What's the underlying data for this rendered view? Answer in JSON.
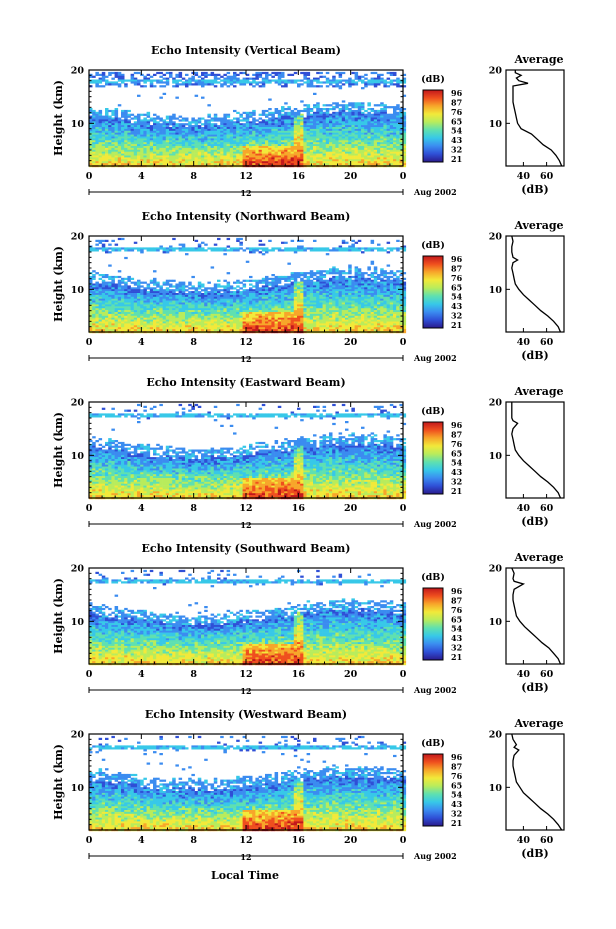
{
  "chart_data": [
    {
      "type": "heatmap",
      "title": "Echo Intensity (Vertical Beam)",
      "ylabel": "Height (km)",
      "xticks": [
        "0",
        "4",
        "8",
        "12",
        "16",
        "20",
        "0"
      ],
      "xlim": [
        0,
        24
      ],
      "yticks": [
        "20",
        "10"
      ],
      "ylim": [
        2,
        20
      ],
      "date_label": "Aug 2002",
      "date_tick": "12",
      "colorbar": {
        "label": "(dB)",
        "ticks": [
          "96",
          "87",
          "76",
          "65",
          "54",
          "43",
          "32",
          "21"
        ]
      },
      "average": {
        "title": "Average",
        "xlabel": "(dB)",
        "xticks": [
          "40",
          "60"
        ],
        "xlim": [
          25,
          75
        ],
        "yticks": [
          "20",
          "10"
        ],
        "profile": [
          [
            2,
            73
          ],
          [
            3,
            71
          ],
          [
            4,
            68
          ],
          [
            5,
            64
          ],
          [
            6,
            57
          ],
          [
            7,
            52
          ],
          [
            8,
            47
          ],
          [
            9,
            38
          ],
          [
            10,
            35
          ],
          [
            11,
            34
          ],
          [
            12,
            33
          ],
          [
            13,
            32
          ],
          [
            14,
            31
          ],
          [
            15,
            31
          ],
          [
            16,
            31
          ],
          [
            17,
            31
          ],
          [
            17.5,
            44
          ],
          [
            18,
            36
          ],
          [
            18.5,
            34
          ],
          [
            19,
            38
          ],
          [
            19.5,
            33
          ],
          [
            20,
            33
          ]
        ]
      }
    },
    {
      "type": "heatmap",
      "title": "Echo Intensity (Northward Beam)",
      "ylabel": "Height (km)",
      "xticks": [
        "0",
        "4",
        "8",
        "12",
        "16",
        "20",
        "0"
      ],
      "xlim": [
        0,
        24
      ],
      "yticks": [
        "20",
        "10"
      ],
      "ylim": [
        2,
        20
      ],
      "date_label": "Aug 2002",
      "date_tick": "12",
      "colorbar": {
        "label": "(dB)",
        "ticks": [
          "96",
          "87",
          "76",
          "65",
          "54",
          "43",
          "32",
          "21"
        ]
      },
      "average": {
        "title": "Average",
        "xlabel": "(dB)",
        "xticks": [
          "40",
          "60"
        ],
        "xlim": [
          25,
          75
        ],
        "yticks": [
          "20",
          "10"
        ],
        "profile": [
          [
            2,
            72
          ],
          [
            3,
            70
          ],
          [
            4,
            66
          ],
          [
            5,
            61
          ],
          [
            6,
            55
          ],
          [
            7,
            50
          ],
          [
            8,
            45
          ],
          [
            9,
            40
          ],
          [
            10,
            36
          ],
          [
            11,
            33
          ],
          [
            12,
            32
          ],
          [
            13,
            31
          ],
          [
            14,
            30
          ],
          [
            15,
            31
          ],
          [
            15.5,
            35
          ],
          [
            16,
            31
          ],
          [
            17,
            30
          ],
          [
            18,
            30
          ],
          [
            19,
            31
          ],
          [
            20,
            30
          ]
        ]
      }
    },
    {
      "type": "heatmap",
      "title": "Echo Intensity (Eastward Beam)",
      "ylabel": "Height (km)",
      "xticks": [
        "0",
        "4",
        "8",
        "12",
        "16",
        "20",
        "0"
      ],
      "xlim": [
        0,
        24
      ],
      "yticks": [
        "20",
        "10"
      ],
      "ylim": [
        2,
        20
      ],
      "date_label": "Aug 2002",
      "date_tick": "12",
      "colorbar": {
        "label": "(dB)",
        "ticks": [
          "96",
          "87",
          "76",
          "65",
          "54",
          "43",
          "32",
          "21"
        ]
      },
      "average": {
        "title": "Average",
        "xlabel": "(dB)",
        "xticks": [
          "40",
          "60"
        ],
        "xlim": [
          25,
          75
        ],
        "yticks": [
          "20",
          "10"
        ],
        "profile": [
          [
            2,
            72
          ],
          [
            3,
            70
          ],
          [
            4,
            66
          ],
          [
            5,
            61
          ],
          [
            6,
            55
          ],
          [
            7,
            50
          ],
          [
            8,
            45
          ],
          [
            9,
            40
          ],
          [
            10,
            36
          ],
          [
            11,
            33
          ],
          [
            12,
            32
          ],
          [
            13,
            31
          ],
          [
            14,
            30
          ],
          [
            15,
            31
          ],
          [
            16,
            35
          ],
          [
            16.5,
            31
          ],
          [
            17,
            30
          ],
          [
            18,
            30
          ],
          [
            19,
            30
          ],
          [
            20,
            30
          ]
        ]
      }
    },
    {
      "type": "heatmap",
      "title": "Echo Intensity (Southward Beam)",
      "ylabel": "Height (km)",
      "xticks": [
        "0",
        "4",
        "8",
        "12",
        "16",
        "20",
        "0"
      ],
      "xlim": [
        0,
        24
      ],
      "yticks": [
        "20",
        "10"
      ],
      "ylim": [
        2,
        20
      ],
      "date_label": "Aug 2002",
      "date_tick": "12",
      "colorbar": {
        "label": "(dB)",
        "ticks": [
          "96",
          "87",
          "76",
          "65",
          "54",
          "43",
          "32",
          "21"
        ]
      },
      "average": {
        "title": "Average",
        "xlabel": "(dB)",
        "xticks": [
          "40",
          "60"
        ],
        "xlim": [
          25,
          75
        ],
        "yticks": [
          "20",
          "10"
        ],
        "profile": [
          [
            2,
            72
          ],
          [
            3,
            70
          ],
          [
            4,
            66
          ],
          [
            5,
            62
          ],
          [
            6,
            56
          ],
          [
            7,
            51
          ],
          [
            8,
            46
          ],
          [
            9,
            41
          ],
          [
            10,
            37
          ],
          [
            11,
            34
          ],
          [
            12,
            33
          ],
          [
            13,
            32
          ],
          [
            14,
            31
          ],
          [
            15,
            31
          ],
          [
            16,
            32
          ],
          [
            17,
            40
          ],
          [
            17.5,
            32
          ],
          [
            18,
            31
          ],
          [
            19,
            32
          ],
          [
            20,
            30
          ]
        ]
      }
    },
    {
      "type": "heatmap",
      "title": "Echo Intensity (Westward Beam)",
      "ylabel": "Height (km)",
      "xticks": [
        "0",
        "4",
        "8",
        "12",
        "16",
        "20",
        "0"
      ],
      "xlim": [
        0,
        24
      ],
      "yticks": [
        "20",
        "10"
      ],
      "ylim": [
        2,
        20
      ],
      "date_label": "Aug 2002",
      "date_tick": "12",
      "colorbar": {
        "label": "(dB)",
        "ticks": [
          "96",
          "87",
          "76",
          "65",
          "54",
          "43",
          "32",
          "21"
        ]
      },
      "average": {
        "title": "Average",
        "xlabel": "(dB)",
        "xticks": [
          "40",
          "60"
        ],
        "xlim": [
          25,
          75
        ],
        "yticks": [
          "20",
          "10"
        ],
        "profile": [
          [
            2,
            73
          ],
          [
            3,
            70
          ],
          [
            4,
            66
          ],
          [
            5,
            61
          ],
          [
            6,
            55
          ],
          [
            7,
            50
          ],
          [
            8,
            45
          ],
          [
            9,
            40
          ],
          [
            10,
            37
          ],
          [
            11,
            34
          ],
          [
            12,
            33
          ],
          [
            13,
            32
          ],
          [
            14,
            31
          ],
          [
            15,
            31
          ],
          [
            16,
            32
          ],
          [
            17,
            36
          ],
          [
            17.5,
            32
          ],
          [
            18,
            34
          ],
          [
            19,
            31
          ],
          [
            20,
            30
          ]
        ]
      }
    }
  ],
  "xlabel": "Local Time",
  "colors": {
    "scale": [
      "#2a1a8c",
      "#2f4fd6",
      "#3b8cf0",
      "#37c8e8",
      "#5fe0b0",
      "#b8ec5c",
      "#f2e93a",
      "#f7a62a",
      "#ef4f1e",
      "#c2181c"
    ]
  }
}
